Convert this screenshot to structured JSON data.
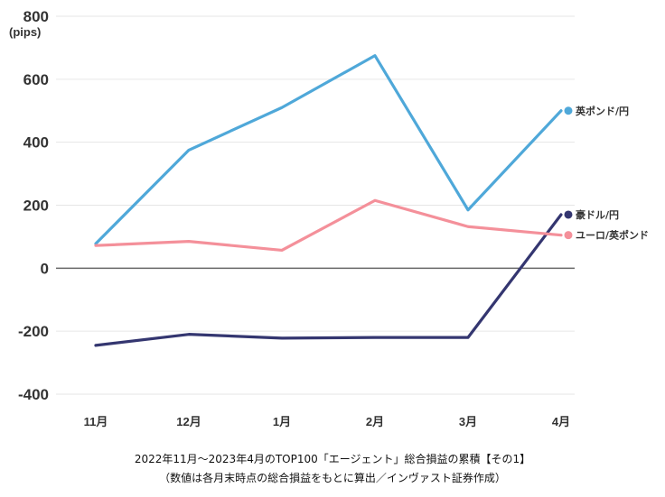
{
  "chart_data": {
    "type": "line",
    "unit_label": "(pips)",
    "categories": [
      "11月",
      "12月",
      "1月",
      "2月",
      "3月",
      "4月"
    ],
    "ylim": [
      -400,
      800
    ],
    "yticks": [
      800,
      600,
      400,
      200,
      0,
      -200,
      -400
    ],
    "grid": true,
    "series": [
      {
        "name": "英ポンド/円",
        "color": "#4fa8d9",
        "values": [
          78,
          375,
          510,
          675,
          185,
          500
        ]
      },
      {
        "name": "豪ドル/円",
        "color": "#343670",
        "values": [
          -245,
          -210,
          -222,
          -220,
          -220,
          170
        ]
      },
      {
        "name": "ユーロ/英ポンド",
        "color": "#f4909a",
        "values": [
          72,
          85,
          57,
          215,
          132,
          105
        ]
      }
    ],
    "caption_line1": "2022年11月〜2023年4月のTOP100「エージェント」総合損益の累積【その1】",
    "caption_line2": "（数値は各月末時点の総合損益をもとに算出／インヴァスト証券作成）"
  }
}
